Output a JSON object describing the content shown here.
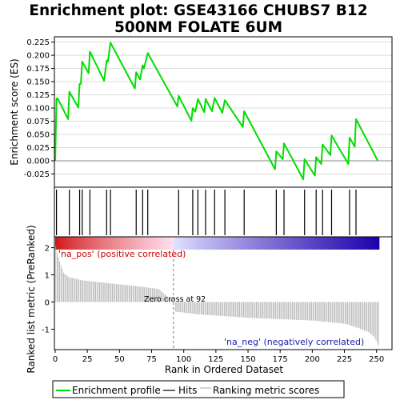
{
  "title_line1": "Enrichment plot: GSE43166 CHUBS7 B12",
  "title_line2": "500NM FOLATE 6UM",
  "colors": {
    "enrichment_line": "#00dd00",
    "hits": "#000000",
    "metric_bars": "#aaaaaa",
    "zero_line": "#888888",
    "zero_cross": "#777777",
    "pos_label": "#cc0000",
    "neg_label": "#1a1aaa",
    "panel_border": "#000000",
    "frame_background": "#eeeeee"
  },
  "labels": {
    "pos_corr": "'na_pos' (positive correlated)",
    "neg_corr": "'na_neg' (negatively correlated)",
    "zero_cross": "Zero cross at 92"
  },
  "legend": {
    "enrichment": "Enrichment profile",
    "hits": "Hits",
    "ranking": "Ranking metric scores"
  },
  "chart_data": [
    {
      "type": "line",
      "panel": "enrichment",
      "ylabel": "Enrichment score (ES)",
      "ylim": [
        -0.05,
        0.235
      ],
      "xlim": [
        0,
        262
      ],
      "yticks": [
        -0.025,
        0.0,
        0.025,
        0.05,
        0.075,
        0.1,
        0.125,
        0.15,
        0.175,
        0.2,
        0.225
      ],
      "ytick_labels": [
        "-0.025",
        "0.000",
        "0.025",
        "0.050",
        "0.075",
        "0.100",
        "0.125",
        "0.150",
        "0.175",
        "0.200",
        "0.225"
      ],
      "grid": true,
      "points": [
        [
          0,
          0.0
        ],
        [
          1,
          0.118
        ],
        [
          2,
          0.118
        ],
        [
          10,
          0.079
        ],
        [
          11,
          0.131
        ],
        [
          18,
          0.101
        ],
        [
          19,
          0.146
        ],
        [
          20,
          0.146
        ],
        [
          21,
          0.188
        ],
        [
          26,
          0.166
        ],
        [
          27,
          0.207
        ],
        [
          38,
          0.152
        ],
        [
          40,
          0.19
        ],
        [
          41,
          0.188
        ],
        [
          43,
          0.224
        ],
        [
          62,
          0.137
        ],
        [
          63,
          0.168
        ],
        [
          66,
          0.154
        ],
        [
          68,
          0.181
        ],
        [
          69,
          0.175
        ],
        [
          72,
          0.204
        ],
        [
          95,
          0.103
        ],
        [
          96,
          0.123
        ],
        [
          106,
          0.076
        ],
        [
          107,
          0.1
        ],
        [
          109,
          0.093
        ],
        [
          111,
          0.117
        ],
        [
          116,
          0.092
        ],
        [
          117,
          0.117
        ],
        [
          122,
          0.094
        ],
        [
          124,
          0.119
        ],
        [
          130,
          0.091
        ],
        [
          132,
          0.115
        ],
        [
          146,
          0.064
        ],
        [
          147,
          0.094
        ],
        [
          171,
          -0.016
        ],
        [
          172,
          0.018
        ],
        [
          177,
          0.003
        ],
        [
          178,
          0.033
        ],
        [
          193,
          -0.035
        ],
        [
          194,
          0.003
        ],
        [
          202,
          -0.028
        ],
        [
          203,
          0.007
        ],
        [
          207,
          -0.006
        ],
        [
          208,
          0.031
        ],
        [
          214,
          0.011
        ],
        [
          215,
          0.048
        ],
        [
          228,
          -0.006
        ],
        [
          229,
          0.044
        ],
        [
          233,
          0.027
        ],
        [
          234,
          0.079
        ],
        [
          251,
          0.0
        ]
      ]
    },
    {
      "type": "scatter",
      "panel": "hits",
      "positions": [
        1,
        11,
        19,
        21,
        27,
        40,
        43,
        63,
        68,
        72,
        96,
        107,
        111,
        117,
        124,
        132,
        147,
        172,
        178,
        194,
        203,
        208,
        215,
        229,
        234
      ]
    },
    {
      "type": "heatmap",
      "panel": "rank-color-bar",
      "from": "positive correlation (red)",
      "to": "negative correlation (blue)"
    },
    {
      "type": "bar",
      "panel": "ranked-list-metric",
      "xlabel": "Rank in Ordered Dataset",
      "ylabel": "Ranked list metric (PreRanked)",
      "ylim": [
        -1.75,
        2.4
      ],
      "yticks": [
        2,
        1,
        0,
        -1
      ],
      "xticks": [
        0,
        25,
        50,
        75,
        100,
        125,
        150,
        175,
        200,
        225,
        250
      ],
      "n_genes": 252,
      "zero_cross": 92,
      "curve": [
        [
          0,
          2.05
        ],
        [
          1,
          1.8
        ],
        [
          3,
          1.5
        ],
        [
          6,
          1.08
        ],
        [
          10,
          0.92
        ],
        [
          20,
          0.8
        ],
        [
          40,
          0.7
        ],
        [
          60,
          0.6
        ],
        [
          80,
          0.48
        ],
        [
          92,
          0.0
        ],
        [
          93,
          -0.35
        ],
        [
          110,
          -0.45
        ],
        [
          150,
          -0.58
        ],
        [
          200,
          -0.68
        ],
        [
          225,
          -0.8
        ],
        [
          235,
          -0.95
        ],
        [
          243,
          -1.1
        ],
        [
          248,
          -1.3
        ],
        [
          251,
          -1.6
        ]
      ]
    }
  ]
}
